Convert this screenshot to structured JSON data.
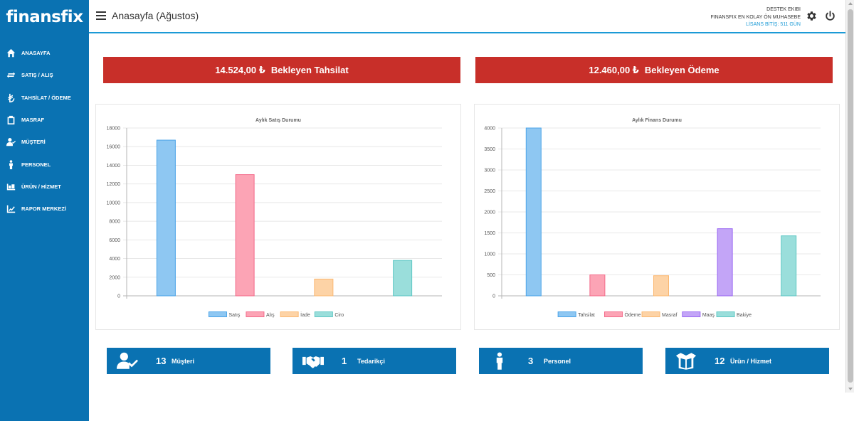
{
  "brand": {
    "name": "finansfix"
  },
  "header": {
    "title": "Anasayfa (Ağustos)",
    "user_line1": "DESTEK EKIBI",
    "user_line2": "FINANSFIX EN KOLAY ÖN MUHASEBE",
    "license": "LİSANS BİTİŞ: 511 GÜN"
  },
  "sidebar": {
    "items": [
      {
        "label": "ANASAYFA",
        "icon": "home-icon"
      },
      {
        "label": "SATIŞ / ALIŞ",
        "icon": "swap-icon"
      },
      {
        "label": "TAHSİLAT / ÖDEME",
        "icon": "lira-icon"
      },
      {
        "label": "MASRAF",
        "icon": "clipboard-icon"
      },
      {
        "label": "MÜŞTERİ",
        "icon": "user-check-icon"
      },
      {
        "label": "PERSONEL",
        "icon": "person-icon"
      },
      {
        "label": "ÜRÜN / HİZMET",
        "icon": "boxes-icon"
      },
      {
        "label": "RAPOR MERKEZİ",
        "icon": "line-chart-icon"
      }
    ]
  },
  "summary": {
    "collection": {
      "amount": "14.524,00 ₺",
      "label": "Bekleyen Tahsilat",
      "color": "#c82f29"
    },
    "payment": {
      "amount": "12.460,00 ₺",
      "label": "Bekleyen Ödeme",
      "color": "#c82f29"
    }
  },
  "stats": [
    {
      "count": "13",
      "label": "Müşteri",
      "icon": "user-check-icon"
    },
    {
      "count": "1",
      "label": "Tedarikçi",
      "icon": "handshake-icon"
    },
    {
      "count": "3",
      "label": "Personel",
      "icon": "person-icon"
    },
    {
      "count": "12",
      "label": "Ürün / Hizmet",
      "icon": "open-box-icon"
    }
  ],
  "chart_data": [
    {
      "type": "bar",
      "title": "Aylık Satış Durumu",
      "categories": [
        "Satış",
        "Alış",
        "İade",
        "Ciro"
      ],
      "values": [
        16700,
        13000,
        1800,
        3800
      ],
      "ylim": [
        0,
        18000
      ],
      "yticks": [
        0,
        2000,
        4000,
        6000,
        8000,
        10000,
        12000,
        14000,
        16000,
        18000
      ],
      "colors": [
        "#8ec7f2",
        "#fca4b5",
        "#fdd3a6",
        "#9adedb"
      ],
      "borders": [
        "#4aa3e8",
        "#f36b8a",
        "#fbb872",
        "#5ec7c4"
      ],
      "legend": "bottom"
    },
    {
      "type": "bar",
      "title": "Aylık Finans Durumu",
      "categories": [
        "Tahsilat",
        "Ödeme",
        "Masraf",
        "Maaş",
        "Bakiye"
      ],
      "values": [
        4000,
        500,
        480,
        1600,
        1430
      ],
      "ylim": [
        0,
        4000
      ],
      "yticks": [
        0,
        500,
        1000,
        1500,
        2000,
        2500,
        3000,
        3500,
        4000
      ],
      "colors": [
        "#8ec7f2",
        "#fca4b5",
        "#fdd3a6",
        "#c3a5f7",
        "#9adedb"
      ],
      "borders": [
        "#4aa3e8",
        "#f36b8a",
        "#fbb872",
        "#9966f2",
        "#5ec7c4"
      ],
      "legend": "bottom"
    }
  ]
}
